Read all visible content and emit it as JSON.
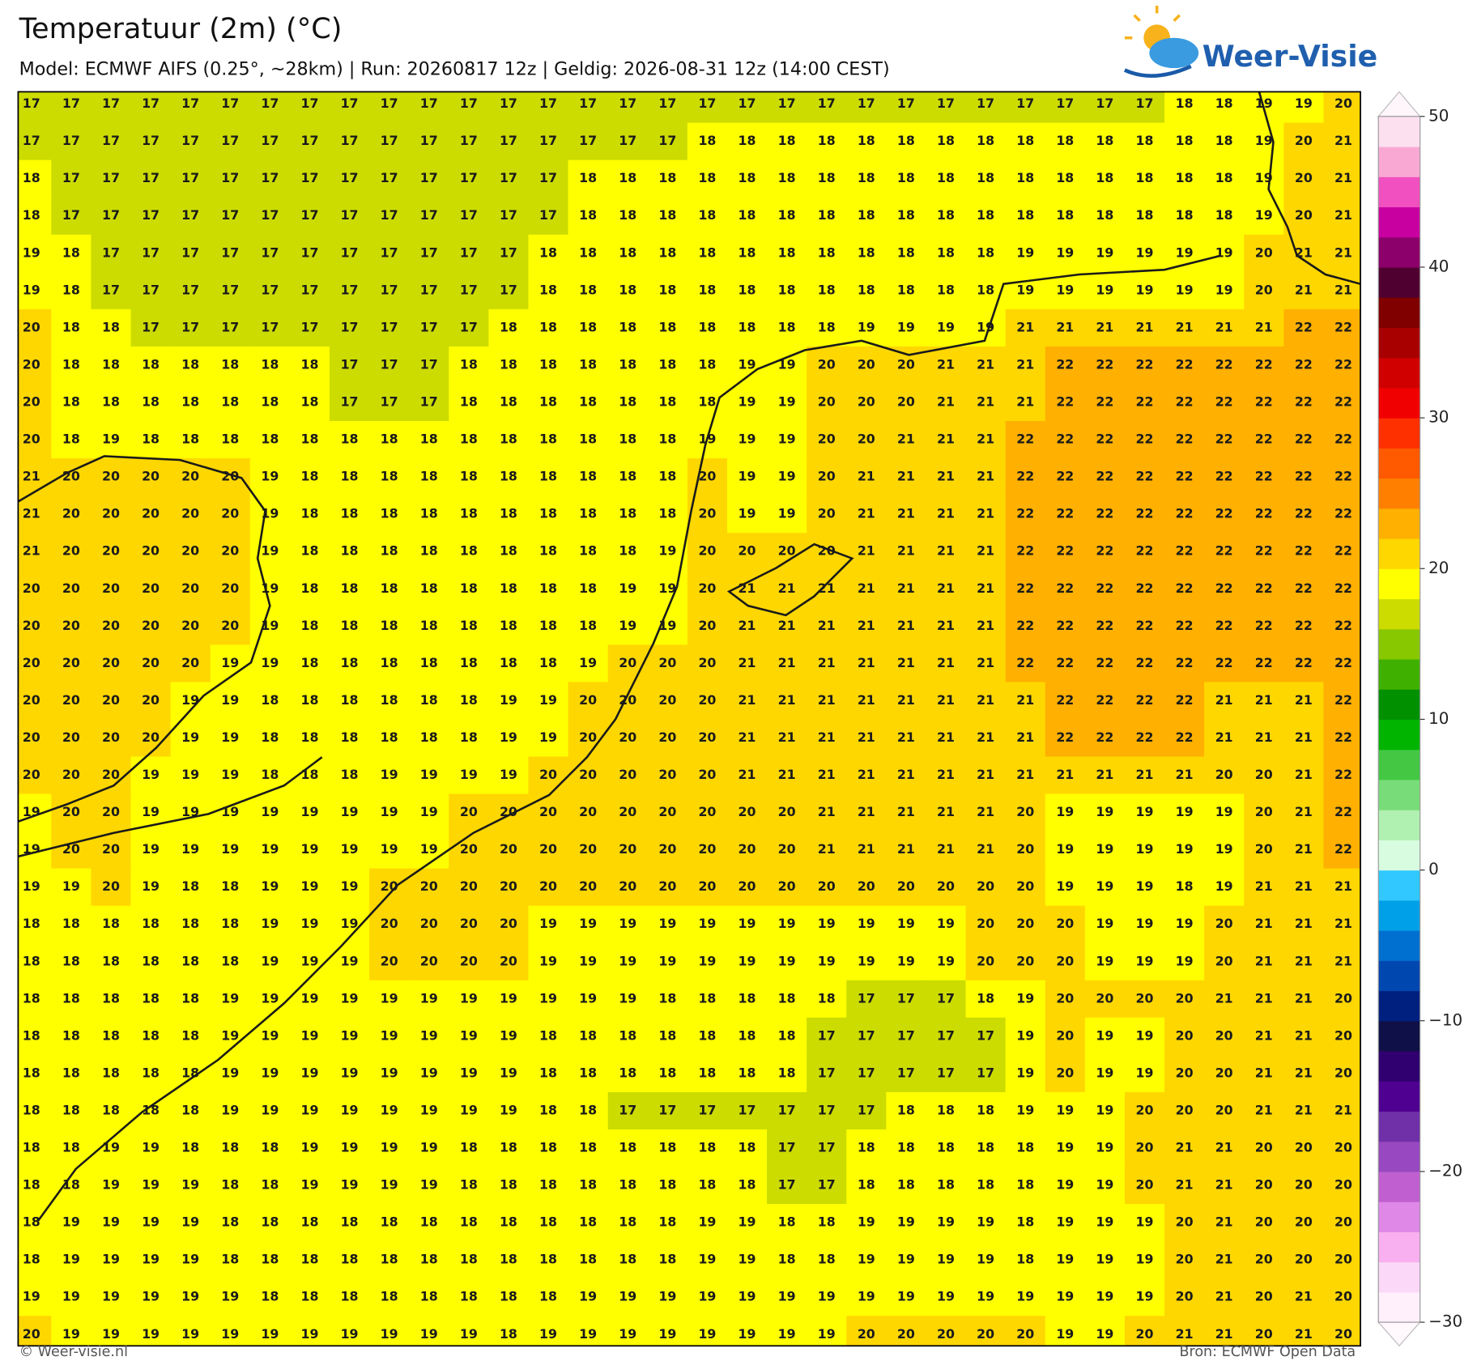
{
  "header": {
    "title": "Temperatuur (2m) (°C)",
    "subtitle": "Model: ECMWF AIFS (0.25°, ~28km)  |  Run: 20260817 12z  |  Geldig: 2026-08-31 12z (14:00 CEST)"
  },
  "logo": {
    "text": "Weer-Visie"
  },
  "map": {
    "grid": [
      [
        17,
        17,
        17,
        17,
        17,
        17,
        17,
        17,
        17,
        17,
        17,
        17,
        17,
        17,
        17,
        17,
        17,
        17,
        17,
        17,
        17,
        17,
        17,
        17,
        17,
        17,
        17,
        17,
        17,
        18,
        18,
        19,
        19,
        20
      ],
      [
        17,
        17,
        17,
        17,
        17,
        17,
        17,
        17,
        17,
        17,
        17,
        17,
        17,
        17,
        17,
        17,
        17,
        18,
        18,
        18,
        18,
        18,
        18,
        18,
        18,
        18,
        18,
        18,
        18,
        18,
        18,
        19,
        20,
        21
      ],
      [
        18,
        17,
        17,
        17,
        17,
        17,
        17,
        17,
        17,
        17,
        17,
        17,
        17,
        17,
        18,
        18,
        18,
        18,
        18,
        18,
        18,
        18,
        18,
        18,
        18,
        18,
        18,
        18,
        18,
        18,
        18,
        19,
        20,
        21
      ],
      [
        18,
        17,
        17,
        17,
        17,
        17,
        17,
        17,
        17,
        17,
        17,
        17,
        17,
        17,
        18,
        18,
        18,
        18,
        18,
        18,
        18,
        18,
        18,
        18,
        18,
        18,
        18,
        18,
        18,
        18,
        18,
        19,
        20,
        21
      ],
      [
        19,
        18,
        17,
        17,
        17,
        17,
        17,
        17,
        17,
        17,
        17,
        17,
        17,
        18,
        18,
        18,
        18,
        18,
        18,
        18,
        18,
        18,
        18,
        18,
        18,
        19,
        19,
        19,
        19,
        19,
        19,
        20,
        21,
        21
      ],
      [
        19,
        18,
        17,
        17,
        17,
        17,
        17,
        17,
        17,
        17,
        17,
        17,
        17,
        18,
        18,
        18,
        18,
        18,
        18,
        18,
        18,
        18,
        18,
        18,
        18,
        19,
        19,
        19,
        19,
        19,
        19,
        20,
        21,
        21
      ],
      [
        20,
        18,
        18,
        17,
        17,
        17,
        17,
        17,
        17,
        17,
        17,
        17,
        18,
        18,
        18,
        18,
        18,
        18,
        18,
        18,
        18,
        19,
        19,
        19,
        19,
        21,
        21,
        21,
        21,
        21,
        21,
        21,
        22,
        22
      ],
      [
        20,
        18,
        18,
        18,
        18,
        18,
        18,
        18,
        17,
        17,
        17,
        18,
        18,
        18,
        18,
        18,
        18,
        18,
        19,
        19,
        20,
        20,
        20,
        21,
        21,
        21,
        22,
        22,
        22,
        22,
        22,
        22,
        22,
        22
      ],
      [
        20,
        18,
        18,
        18,
        18,
        18,
        18,
        18,
        17,
        17,
        17,
        18,
        18,
        18,
        18,
        18,
        18,
        18,
        19,
        19,
        20,
        20,
        20,
        21,
        21,
        21,
        22,
        22,
        22,
        22,
        22,
        22,
        22,
        22
      ],
      [
        20,
        18,
        19,
        18,
        18,
        18,
        18,
        18,
        18,
        18,
        18,
        18,
        18,
        18,
        18,
        18,
        18,
        19,
        19,
        19,
        20,
        20,
        21,
        21,
        21,
        22,
        22,
        22,
        22,
        22,
        22,
        22,
        22,
        22
      ],
      [
        21,
        20,
        20,
        20,
        20,
        20,
        19,
        18,
        18,
        18,
        18,
        18,
        18,
        18,
        18,
        18,
        18,
        20,
        19,
        19,
        20,
        21,
        21,
        21,
        21,
        22,
        22,
        22,
        22,
        22,
        22,
        22,
        22,
        22
      ],
      [
        21,
        20,
        20,
        20,
        20,
        20,
        19,
        18,
        18,
        18,
        18,
        18,
        18,
        18,
        18,
        18,
        18,
        20,
        19,
        19,
        20,
        21,
        21,
        21,
        21,
        22,
        22,
        22,
        22,
        22,
        22,
        22,
        22,
        22
      ],
      [
        21,
        20,
        20,
        20,
        20,
        20,
        19,
        18,
        18,
        18,
        18,
        18,
        18,
        18,
        18,
        18,
        19,
        20,
        20,
        20,
        20,
        21,
        21,
        21,
        21,
        22,
        22,
        22,
        22,
        22,
        22,
        22,
        22,
        22
      ],
      [
        20,
        20,
        20,
        20,
        20,
        20,
        19,
        18,
        18,
        18,
        18,
        18,
        18,
        18,
        18,
        19,
        19,
        20,
        21,
        21,
        21,
        21,
        21,
        21,
        21,
        22,
        22,
        22,
        22,
        22,
        22,
        22,
        22,
        22
      ],
      [
        20,
        20,
        20,
        20,
        20,
        20,
        19,
        18,
        18,
        18,
        18,
        18,
        18,
        18,
        18,
        19,
        19,
        20,
        21,
        21,
        21,
        21,
        21,
        21,
        21,
        22,
        22,
        22,
        22,
        22,
        22,
        22,
        22,
        22
      ],
      [
        20,
        20,
        20,
        20,
        20,
        19,
        19,
        18,
        18,
        18,
        18,
        18,
        18,
        18,
        19,
        20,
        20,
        20,
        21,
        21,
        21,
        21,
        21,
        21,
        21,
        22,
        22,
        22,
        22,
        22,
        22,
        22,
        22,
        22
      ],
      [
        20,
        20,
        20,
        20,
        19,
        19,
        18,
        18,
        18,
        18,
        18,
        18,
        19,
        19,
        20,
        20,
        20,
        20,
        21,
        21,
        21,
        21,
        21,
        21,
        21,
        21,
        22,
        22,
        22,
        22,
        21,
        21,
        21,
        22
      ],
      [
        20,
        20,
        20,
        20,
        19,
        19,
        18,
        18,
        18,
        18,
        18,
        18,
        19,
        19,
        20,
        20,
        20,
        20,
        21,
        21,
        21,
        21,
        21,
        21,
        21,
        21,
        22,
        22,
        22,
        22,
        21,
        21,
        21,
        22
      ],
      [
        20,
        20,
        20,
        19,
        19,
        19,
        18,
        18,
        18,
        19,
        19,
        19,
        19,
        20,
        20,
        20,
        20,
        20,
        21,
        21,
        21,
        21,
        21,
        21,
        21,
        21,
        21,
        21,
        21,
        21,
        20,
        20,
        21,
        22
      ],
      [
        19,
        20,
        20,
        19,
        19,
        19,
        19,
        19,
        19,
        19,
        19,
        20,
        20,
        20,
        20,
        20,
        20,
        20,
        20,
        20,
        21,
        21,
        21,
        21,
        21,
        20,
        19,
        19,
        19,
        19,
        19,
        20,
        21,
        22
      ],
      [
        19,
        20,
        20,
        19,
        19,
        19,
        19,
        19,
        19,
        19,
        19,
        20,
        20,
        20,
        20,
        20,
        20,
        20,
        20,
        20,
        21,
        21,
        21,
        21,
        21,
        20,
        19,
        19,
        19,
        19,
        19,
        20,
        21,
        22
      ],
      [
        19,
        19,
        20,
        19,
        18,
        18,
        19,
        19,
        19,
        20,
        20,
        20,
        20,
        20,
        20,
        20,
        20,
        20,
        20,
        20,
        20,
        20,
        20,
        20,
        20,
        20,
        19,
        19,
        19,
        18,
        19,
        21,
        21,
        21
      ],
      [
        18,
        18,
        18,
        18,
        18,
        18,
        19,
        19,
        19,
        20,
        20,
        20,
        20,
        19,
        19,
        19,
        19,
        19,
        19,
        19,
        19,
        19,
        19,
        19,
        20,
        20,
        20,
        19,
        19,
        19,
        20,
        21,
        21,
        21
      ],
      [
        18,
        18,
        18,
        18,
        18,
        18,
        19,
        19,
        19,
        20,
        20,
        20,
        20,
        19,
        19,
        19,
        19,
        19,
        19,
        19,
        19,
        19,
        19,
        19,
        20,
        20,
        20,
        19,
        19,
        19,
        20,
        21,
        21,
        21
      ],
      [
        18,
        18,
        18,
        18,
        18,
        19,
        19,
        19,
        19,
        19,
        19,
        19,
        19,
        19,
        19,
        19,
        18,
        18,
        18,
        18,
        18,
        17,
        17,
        17,
        18,
        19,
        20,
        20,
        20,
        20,
        21,
        21,
        21,
        20
      ],
      [
        18,
        18,
        18,
        18,
        18,
        19,
        19,
        19,
        19,
        19,
        19,
        19,
        19,
        18,
        18,
        18,
        18,
        18,
        18,
        18,
        17,
        17,
        17,
        17,
        17,
        19,
        20,
        19,
        19,
        20,
        20,
        21,
        21,
        20
      ],
      [
        18,
        18,
        18,
        18,
        18,
        19,
        19,
        19,
        19,
        19,
        19,
        19,
        19,
        18,
        18,
        18,
        18,
        18,
        18,
        18,
        17,
        17,
        17,
        17,
        17,
        19,
        20,
        19,
        19,
        20,
        20,
        21,
        21,
        20
      ],
      [
        18,
        18,
        18,
        18,
        18,
        19,
        19,
        19,
        19,
        19,
        19,
        19,
        19,
        18,
        18,
        17,
        17,
        17,
        17,
        17,
        17,
        17,
        18,
        18,
        18,
        19,
        19,
        19,
        20,
        20,
        20,
        21,
        21,
        21
      ],
      [
        18,
        18,
        19,
        19,
        18,
        18,
        18,
        19,
        19,
        19,
        19,
        18,
        18,
        18,
        18,
        18,
        18,
        18,
        18,
        17,
        17,
        18,
        18,
        18,
        18,
        18,
        19,
        19,
        20,
        21,
        21,
        20,
        20,
        20
      ],
      [
        18,
        18,
        19,
        19,
        19,
        18,
        18,
        19,
        19,
        19,
        19,
        18,
        18,
        18,
        18,
        18,
        18,
        18,
        18,
        17,
        17,
        18,
        18,
        18,
        18,
        18,
        19,
        19,
        20,
        21,
        21,
        20,
        20,
        20
      ],
      [
        18,
        19,
        19,
        19,
        19,
        18,
        18,
        18,
        18,
        18,
        18,
        18,
        18,
        18,
        18,
        18,
        18,
        19,
        19,
        18,
        18,
        19,
        19,
        19,
        19,
        18,
        19,
        19,
        19,
        20,
        21,
        20,
        20,
        20
      ],
      [
        18,
        19,
        19,
        19,
        19,
        18,
        18,
        18,
        18,
        18,
        18,
        18,
        18,
        18,
        18,
        18,
        18,
        19,
        19,
        18,
        18,
        19,
        19,
        19,
        19,
        18,
        19,
        19,
        19,
        20,
        21,
        20,
        20,
        20
      ],
      [
        19,
        19,
        19,
        19,
        19,
        19,
        18,
        18,
        18,
        18,
        18,
        18,
        18,
        18,
        19,
        19,
        19,
        19,
        19,
        19,
        19,
        19,
        19,
        19,
        19,
        19,
        19,
        19,
        19,
        20,
        21,
        20,
        21,
        20
      ],
      [
        20,
        19,
        19,
        19,
        19,
        19,
        19,
        19,
        19,
        19,
        19,
        19,
        18,
        19,
        19,
        19,
        19,
        19,
        19,
        19,
        19,
        20,
        20,
        20,
        20,
        20,
        19,
        19,
        20,
        21,
        21,
        20,
        21,
        20
      ]
    ]
  },
  "colorbar": {
    "lim": [
      -30,
      50
    ],
    "ticks": [
      50,
      40,
      30,
      20,
      10,
      0,
      {
        "value": -10,
        "label": "−10"
      },
      {
        "value": -20,
        "label": "−20"
      },
      {
        "value": -30,
        "label": "−30"
      }
    ],
    "colors": [
      "#fff0fc",
      "#fcd8f8",
      "#f8b0f0",
      "#e088e8",
      "#c060d0",
      "#9848c0",
      "#7030a8",
      "#500090",
      "#300070",
      "#101048",
      "#002080",
      "#0048b0",
      "#0070d0",
      "#00a0e8",
      "#30c8ff",
      "#d8fce0",
      "#b0f0b0",
      "#78dc78",
      "#44c844",
      "#00b400",
      "#009000",
      "#40b000",
      "#88c800",
      "#ccdc00",
      "#ffff00",
      "#ffd700",
      "#ffb000",
      "#ff8000",
      "#ff5a00",
      "#ff3000",
      "#f00000",
      "#d00000",
      "#a80000",
      "#800000",
      "#500030",
      "#8b006b",
      "#c800a0",
      "#f050c0",
      "#f9a8d4",
      "#fde0f0"
    ]
  },
  "footer": {
    "left": "© Weer-visie.nl",
    "right": "Bron: ECMWF Open Data"
  }
}
